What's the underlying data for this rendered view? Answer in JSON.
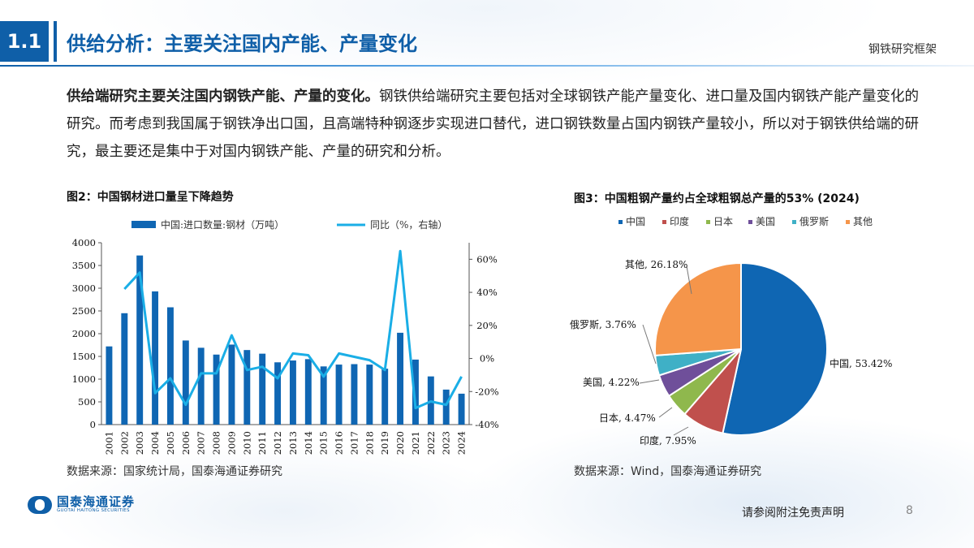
{
  "header": {
    "section_number": "1.1",
    "title": "供给分析：主要关注国内产能、产量变化",
    "corner_label": "钢铁研究框架"
  },
  "intro": {
    "bold_lead": "供给端研究主要关注国内钢铁产能、产量的变化。",
    "body": "钢铁供给端研究主要包括对全球钢铁产能产量变化、进口量及国内钢铁产能产量变化的研究。而考虑到我国属于钢铁净出口国，且高端特种钢逐步实现进口替代，进口钢铁数量占国内钢铁产量较小，所以对于钢铁供给端的研究，最主要还是集中于对国内钢铁产能、产量的研究和分析。"
  },
  "figures": {
    "fig2_title": "图2：中国钢材进口量呈下降趋势",
    "fig2_source": "数据来源：国家统计局，国泰海通证券研究",
    "fig3_title": "图3：中国粗钢产量约占全球粗钢总产量的53% (2024)",
    "fig3_source": "数据来源：Wind，国泰海通证券研究"
  },
  "chart_data": [
    {
      "type": "bar",
      "categories": [
        "2001",
        "2002",
        "2003",
        "2004",
        "2005",
        "2006",
        "2007",
        "2008",
        "2009",
        "2010",
        "2011",
        "2012",
        "2013",
        "2014",
        "2015",
        "2016",
        "2017",
        "2018",
        "2019",
        "2020",
        "2021",
        "2022",
        "2023",
        "2024"
      ],
      "series": [
        {
          "name": "中国:进口数量:钢材（万吨）",
          "type": "bar",
          "axis": "left",
          "color": "#0f66b3",
          "values": [
            1720,
            2450,
            3720,
            2930,
            2580,
            1850,
            1690,
            1540,
            1760,
            1640,
            1560,
            1370,
            1410,
            1440,
            1280,
            1320,
            1330,
            1320,
            1230,
            2020,
            1430,
            1060,
            770,
            680
          ]
        },
        {
          "name": "同比（%，右轴）",
          "type": "line",
          "axis": "right",
          "color": "#1aaee6",
          "values": [
            null,
            42,
            52,
            -21,
            -12,
            -28,
            -9,
            -9,
            14,
            -7,
            -5,
            -12,
            3,
            2,
            -11,
            3,
            1,
            -1,
            -7,
            65,
            -30,
            -26,
            -28,
            -11
          ]
        }
      ],
      "y_left": {
        "min": 0,
        "max": 4000,
        "ticks": [
          "0",
          "500",
          "1000",
          "1500",
          "2000",
          "2500",
          "3000",
          "3500",
          "4000"
        ]
      },
      "y_right": {
        "min": -40,
        "max": 70,
        "ticks": [
          "-40%",
          "-20%",
          "0%",
          "20%",
          "40%",
          "60%"
        ]
      },
      "legend_position": "top",
      "grid": false
    },
    {
      "type": "pie",
      "legend": [
        "中国",
        "印度",
        "日本",
        "美国",
        "俄罗斯",
        "其他"
      ],
      "slices": [
        {
          "name": "中国",
          "value": 53.42,
          "label": "中国, 53.42%",
          "color": "#0f66b3"
        },
        {
          "name": "印度",
          "value": 7.95,
          "label": "印度, 7.95%",
          "color": "#c0504d"
        },
        {
          "name": "日本",
          "value": 4.47,
          "label": "日本, 4.47%",
          "color": "#8fb84d"
        },
        {
          "name": "美国",
          "value": 4.22,
          "label": "美国, 4.22%",
          "color": "#6f4f9a"
        },
        {
          "name": "俄罗斯",
          "value": 3.76,
          "label": "俄罗斯, 3.76%",
          "color": "#3fb0c6"
        },
        {
          "name": "其他",
          "value": 26.18,
          "label": "其他, 26.18%",
          "color": "#f5954a"
        }
      ],
      "legend_position": "top"
    }
  ],
  "footer": {
    "logo_cn": "国泰海通证券",
    "logo_en": "GUOTAI HAITONG SECURITIES",
    "disclaimer": "请参阅附注免责声明",
    "page_number": "8"
  }
}
